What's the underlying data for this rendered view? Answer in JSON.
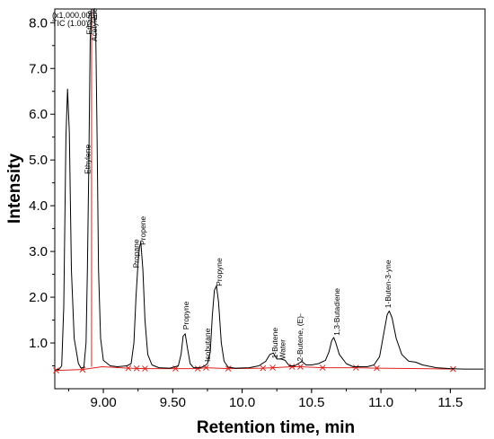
{
  "chart_data": {
    "type": "line",
    "xlabel": "Retention time, min",
    "ylabel": "Intensity",
    "scale_note": "(x1,000,000)",
    "trace_label": "TIC (1.00)",
    "xlim": [
      8.65,
      11.75
    ],
    "ylim": [
      0.0,
      8.3
    ],
    "x_ticks": [
      "9.00",
      "9.50",
      "10.0",
      "10.5",
      "11.0",
      "11.5"
    ],
    "x_tick_values": [
      9.0,
      9.5,
      10.0,
      10.5,
      11.0,
      11.5
    ],
    "y_ticks": [
      "1.0",
      "2.0",
      "3.0",
      "4.0",
      "5.0",
      "6.0",
      "7.0",
      "8.0"
    ],
    "y_tick_values": [
      1.0,
      2.0,
      3.0,
      4.0,
      5.0,
      6.0,
      7.0,
      8.0
    ],
    "colors": {
      "trace": "#000000",
      "baseline": "#e0201c",
      "label_line": "#1b2fb0",
      "marker": "#e0201c"
    },
    "series": [
      {
        "points": [
          [
            8.66,
            0.42
          ],
          [
            8.68,
            0.42
          ],
          [
            8.7,
            0.5
          ],
          [
            8.715,
            1.8
          ],
          [
            8.73,
            5.5
          ],
          [
            8.742,
            6.55
          ],
          [
            8.755,
            5.6
          ],
          [
            8.77,
            2.6
          ],
          [
            8.79,
            1.1
          ],
          [
            8.82,
            0.55
          ],
          [
            8.84,
            0.45
          ],
          [
            8.86,
            0.47
          ],
          [
            8.875,
            1.0
          ],
          [
            8.885,
            2.6
          ],
          [
            8.895,
            4.9
          ],
          [
            8.905,
            7.6
          ],
          [
            8.915,
            8.3
          ],
          [
            8.93,
            8.3
          ],
          [
            8.945,
            7.8
          ],
          [
            8.955,
            5.5
          ],
          [
            8.965,
            2.6
          ],
          [
            8.98,
            1.1
          ],
          [
            9.0,
            0.62
          ],
          [
            9.05,
            0.5
          ],
          [
            9.1,
            0.48
          ],
          [
            9.17,
            0.5
          ],
          [
            9.2,
            0.55
          ],
          [
            9.22,
            1.0
          ],
          [
            9.235,
            2.0
          ],
          [
            9.25,
            2.75
          ],
          [
            9.26,
            3.1
          ],
          [
            9.27,
            3.2
          ],
          [
            9.285,
            2.6
          ],
          [
            9.3,
            1.5
          ],
          [
            9.32,
            0.75
          ],
          [
            9.35,
            0.52
          ],
          [
            9.4,
            0.46
          ],
          [
            9.48,
            0.45
          ],
          [
            9.54,
            0.5
          ],
          [
            9.56,
            0.75
          ],
          [
            9.575,
            1.15
          ],
          [
            9.59,
            1.2
          ],
          [
            9.605,
            0.9
          ],
          [
            9.625,
            0.55
          ],
          [
            9.65,
            0.46
          ],
          [
            9.7,
            0.46
          ],
          [
            9.73,
            0.5
          ],
          [
            9.75,
            0.55
          ],
          [
            9.77,
            0.8
          ],
          [
            9.785,
            1.6
          ],
          [
            9.8,
            2.15
          ],
          [
            9.815,
            2.25
          ],
          [
            9.83,
            1.9
          ],
          [
            9.85,
            1.0
          ],
          [
            9.87,
            0.6
          ],
          [
            9.9,
            0.47
          ],
          [
            9.95,
            0.45
          ],
          [
            10.05,
            0.46
          ],
          [
            10.12,
            0.5
          ],
          [
            10.17,
            0.6
          ],
          [
            10.2,
            0.75
          ],
          [
            10.225,
            0.78
          ],
          [
            10.25,
            0.65
          ],
          [
            10.28,
            0.65
          ],
          [
            10.31,
            0.62
          ],
          [
            10.34,
            0.5
          ],
          [
            10.38,
            0.5
          ],
          [
            10.41,
            0.56
          ],
          [
            10.43,
            0.6
          ],
          [
            10.46,
            0.52
          ],
          [
            10.5,
            0.52
          ],
          [
            10.55,
            0.55
          ],
          [
            10.6,
            0.62
          ],
          [
            10.625,
            0.8
          ],
          [
            10.645,
            1.05
          ],
          [
            10.66,
            1.12
          ],
          [
            10.675,
            1.0
          ],
          [
            10.7,
            0.75
          ],
          [
            10.75,
            0.55
          ],
          [
            10.8,
            0.48
          ],
          [
            10.85,
            0.48
          ],
          [
            10.9,
            0.48
          ],
          [
            10.95,
            0.52
          ],
          [
            10.99,
            0.7
          ],
          [
            11.02,
            1.2
          ],
          [
            11.045,
            1.62
          ],
          [
            11.06,
            1.7
          ],
          [
            11.08,
            1.55
          ],
          [
            11.11,
            1.1
          ],
          [
            11.15,
            0.75
          ],
          [
            11.2,
            0.6
          ],
          [
            11.25,
            0.58
          ],
          [
            11.3,
            0.52
          ],
          [
            11.4,
            0.46
          ],
          [
            11.5,
            0.44
          ],
          [
            11.6,
            0.43
          ],
          [
            11.74,
            0.43
          ]
        ]
      }
    ],
    "baseline_points": [
      [
        8.66,
        0.4
      ],
      [
        8.85,
        0.42
      ],
      [
        8.99,
        0.48
      ],
      [
        9.18,
        0.45
      ],
      [
        9.3,
        0.44
      ],
      [
        9.52,
        0.44
      ],
      [
        9.68,
        0.44
      ],
      [
        9.74,
        0.46
      ],
      [
        9.9,
        0.44
      ],
      [
        10.15,
        0.45
      ],
      [
        10.22,
        0.46
      ],
      [
        10.36,
        0.48
      ],
      [
        10.42,
        0.48
      ],
      [
        10.58,
        0.46
      ],
      [
        10.82,
        0.46
      ],
      [
        10.97,
        0.45
      ],
      [
        11.3,
        0.44
      ],
      [
        11.52,
        0.43
      ]
    ],
    "baseline_markers": [
      8.66,
      8.85,
      9.18,
      9.24,
      9.3,
      9.52,
      9.68,
      9.74,
      9.9,
      10.15,
      10.22,
      10.36,
      10.42,
      10.58,
      10.82,
      10.97,
      11.52
    ],
    "peak_marker_lines": [
      8.915
    ],
    "peaks": [
      {
        "label": "Ethane",
        "x": 8.918,
        "y": 7.7
      },
      {
        "label": "Acetylene",
        "x": 8.955,
        "y": 7.55
      },
      {
        "label": "Ethylene",
        "x": 8.905,
        "y": 4.65
      },
      {
        "label": "Propane",
        "x": 9.255,
        "y": 2.6
      },
      {
        "label": "Propene",
        "x": 9.305,
        "y": 3.1
      },
      {
        "label": "Propyne",
        "x": 9.615,
        "y": 1.25
      },
      {
        "label": "Isobutane",
        "x": 9.77,
        "y": 0.55
      },
      {
        "label": "Propyne",
        "x": 9.855,
        "y": 2.2
      },
      {
        "label": "1-Butene",
        "x": 10.255,
        "y": 0.62
      },
      {
        "label": "Water",
        "x": 10.31,
        "y": 0.6
      },
      {
        "label": "2-Butene, (E)-",
        "x": 10.435,
        "y": 0.56
      },
      {
        "label": "1,3-Butadiene",
        "x": 10.7,
        "y": 1.12
      },
      {
        "label": "1-Buten-3-yne",
        "x": 11.07,
        "y": 1.72
      }
    ]
  }
}
